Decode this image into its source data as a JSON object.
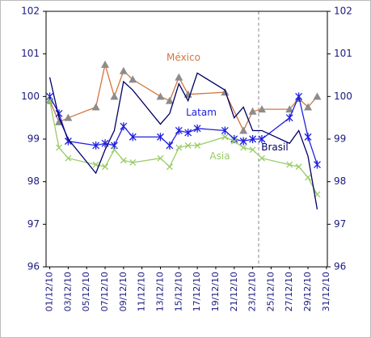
{
  "chart_data": {
    "type": "line",
    "xlim": [
      0.6,
      31.1
    ],
    "xticks": [
      {
        "value": 1,
        "label": "01/12/10"
      },
      {
        "value": 3,
        "label": "03/12/10"
      },
      {
        "value": 5,
        "label": "05/12/10"
      },
      {
        "value": 7,
        "label": "07/12/10"
      },
      {
        "value": 9,
        "label": "09/12/10"
      },
      {
        "value": 11,
        "label": "11/12/10"
      },
      {
        "value": 13,
        "label": "13/12/10"
      },
      {
        "value": 15,
        "label": "15/12/10"
      },
      {
        "value": 17,
        "label": "17/12/10"
      },
      {
        "value": 19,
        "label": "19/12/10"
      },
      {
        "value": 21,
        "label": "21/12/10"
      },
      {
        "value": 23,
        "label": "23/12/10"
      },
      {
        "value": 25,
        "label": "25/12/10"
      },
      {
        "value": 27,
        "label": "27/12/10"
      },
      {
        "value": 29,
        "label": "29/12/10"
      },
      {
        "value": 31,
        "label": "31/12/10"
      }
    ],
    "ylim": [
      96,
      102
    ],
    "yticks": [
      96,
      97,
      98,
      99,
      100,
      101,
      102
    ],
    "y2lim": [
      96,
      102
    ],
    "y2ticks": [
      96,
      97,
      98,
      99,
      100,
      101,
      102
    ],
    "series": [
      {
        "name": "México",
        "color": "#d2763f",
        "marker": "triangle",
        "marker_color": "#8c8c8c",
        "x": [
          1,
          2,
          3,
          6,
          7,
          8,
          9,
          10,
          13,
          14,
          15,
          16,
          20,
          22,
          23,
          24,
          27,
          28,
          29,
          30
        ],
        "values": [
          99.9,
          99.4,
          99.5,
          99.75,
          100.75,
          100,
          100.6,
          100.4,
          100,
          99.9,
          100.45,
          100.05,
          100.1,
          99.2,
          99.65,
          99.7,
          99.7,
          99.95,
          99.75,
          100
        ]
      },
      {
        "name": "Latam",
        "color": "#2020e0",
        "marker": "star",
        "marker_color": "#2020e0",
        "x": [
          1,
          2,
          3,
          6,
          7,
          8,
          9,
          10,
          13,
          14,
          15,
          16,
          17,
          20,
          21,
          22,
          23,
          24,
          27,
          28,
          29,
          30
        ],
        "values": [
          100,
          99.6,
          98.95,
          98.85,
          98.9,
          98.85,
          99.3,
          99.05,
          99.05,
          98.85,
          99.2,
          99.15,
          99.25,
          99.2,
          99.0,
          98.95,
          99.0,
          99.0,
          99.5,
          100,
          99.05,
          98.4
        ]
      },
      {
        "name": "Asia",
        "color": "#99cc66",
        "marker": "cross",
        "marker_color": "#99cc66",
        "x": [
          1,
          2,
          3,
          6,
          7,
          8,
          9,
          10,
          13,
          14,
          15,
          16,
          17,
          20,
          21,
          22,
          23,
          24,
          27,
          28,
          29,
          30
        ],
        "values": [
          99.9,
          98.8,
          98.55,
          98.4,
          98.35,
          98.75,
          98.5,
          98.45,
          98.55,
          98.35,
          98.8,
          98.85,
          98.85,
          99.05,
          98.95,
          98.8,
          98.75,
          98.55,
          98.4,
          98.35,
          98.1,
          97.7
        ]
      },
      {
        "name": "Brasil",
        "color": "#000066",
        "marker": "none",
        "marker_color": "#000066",
        "x": [
          1,
          2,
          3,
          6,
          7,
          8,
          9,
          10,
          13,
          14,
          15,
          16,
          17,
          20,
          21,
          22,
          23,
          24,
          27,
          28,
          29,
          30
        ],
        "values": [
          100.45,
          99.5,
          99.0,
          98.2,
          98.75,
          99.2,
          100.35,
          100.15,
          99.35,
          99.6,
          100.3,
          99.9,
          100.55,
          100.15,
          99.5,
          99.75,
          99.2,
          99.2,
          98.9,
          99.2,
          98.6,
          97.35
        ]
      }
    ]
  }
}
